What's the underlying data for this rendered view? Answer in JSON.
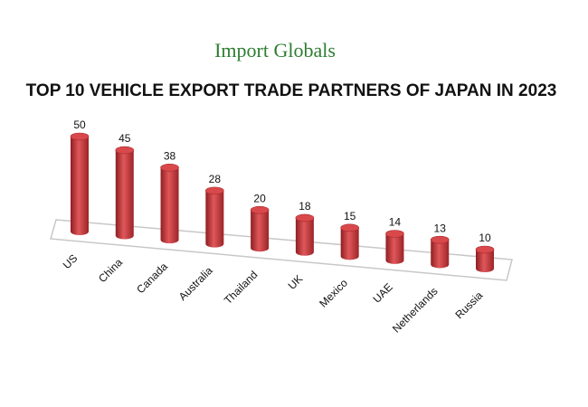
{
  "chart_data": {
    "type": "bar3d",
    "brand": "Import Globals",
    "title": "TOP 10 VEHICLE EXPORT TRADE PARTNERS OF JAPAN IN 2023",
    "categories": [
      "US",
      "China",
      "Canada",
      "Australia",
      "Thailand",
      "UK",
      "Mexico",
      "UAE",
      "Netherlands",
      "Russia"
    ],
    "values": [
      50,
      45,
      38,
      28,
      20,
      18,
      15,
      14,
      13,
      10
    ],
    "color": "#c0393b"
  }
}
